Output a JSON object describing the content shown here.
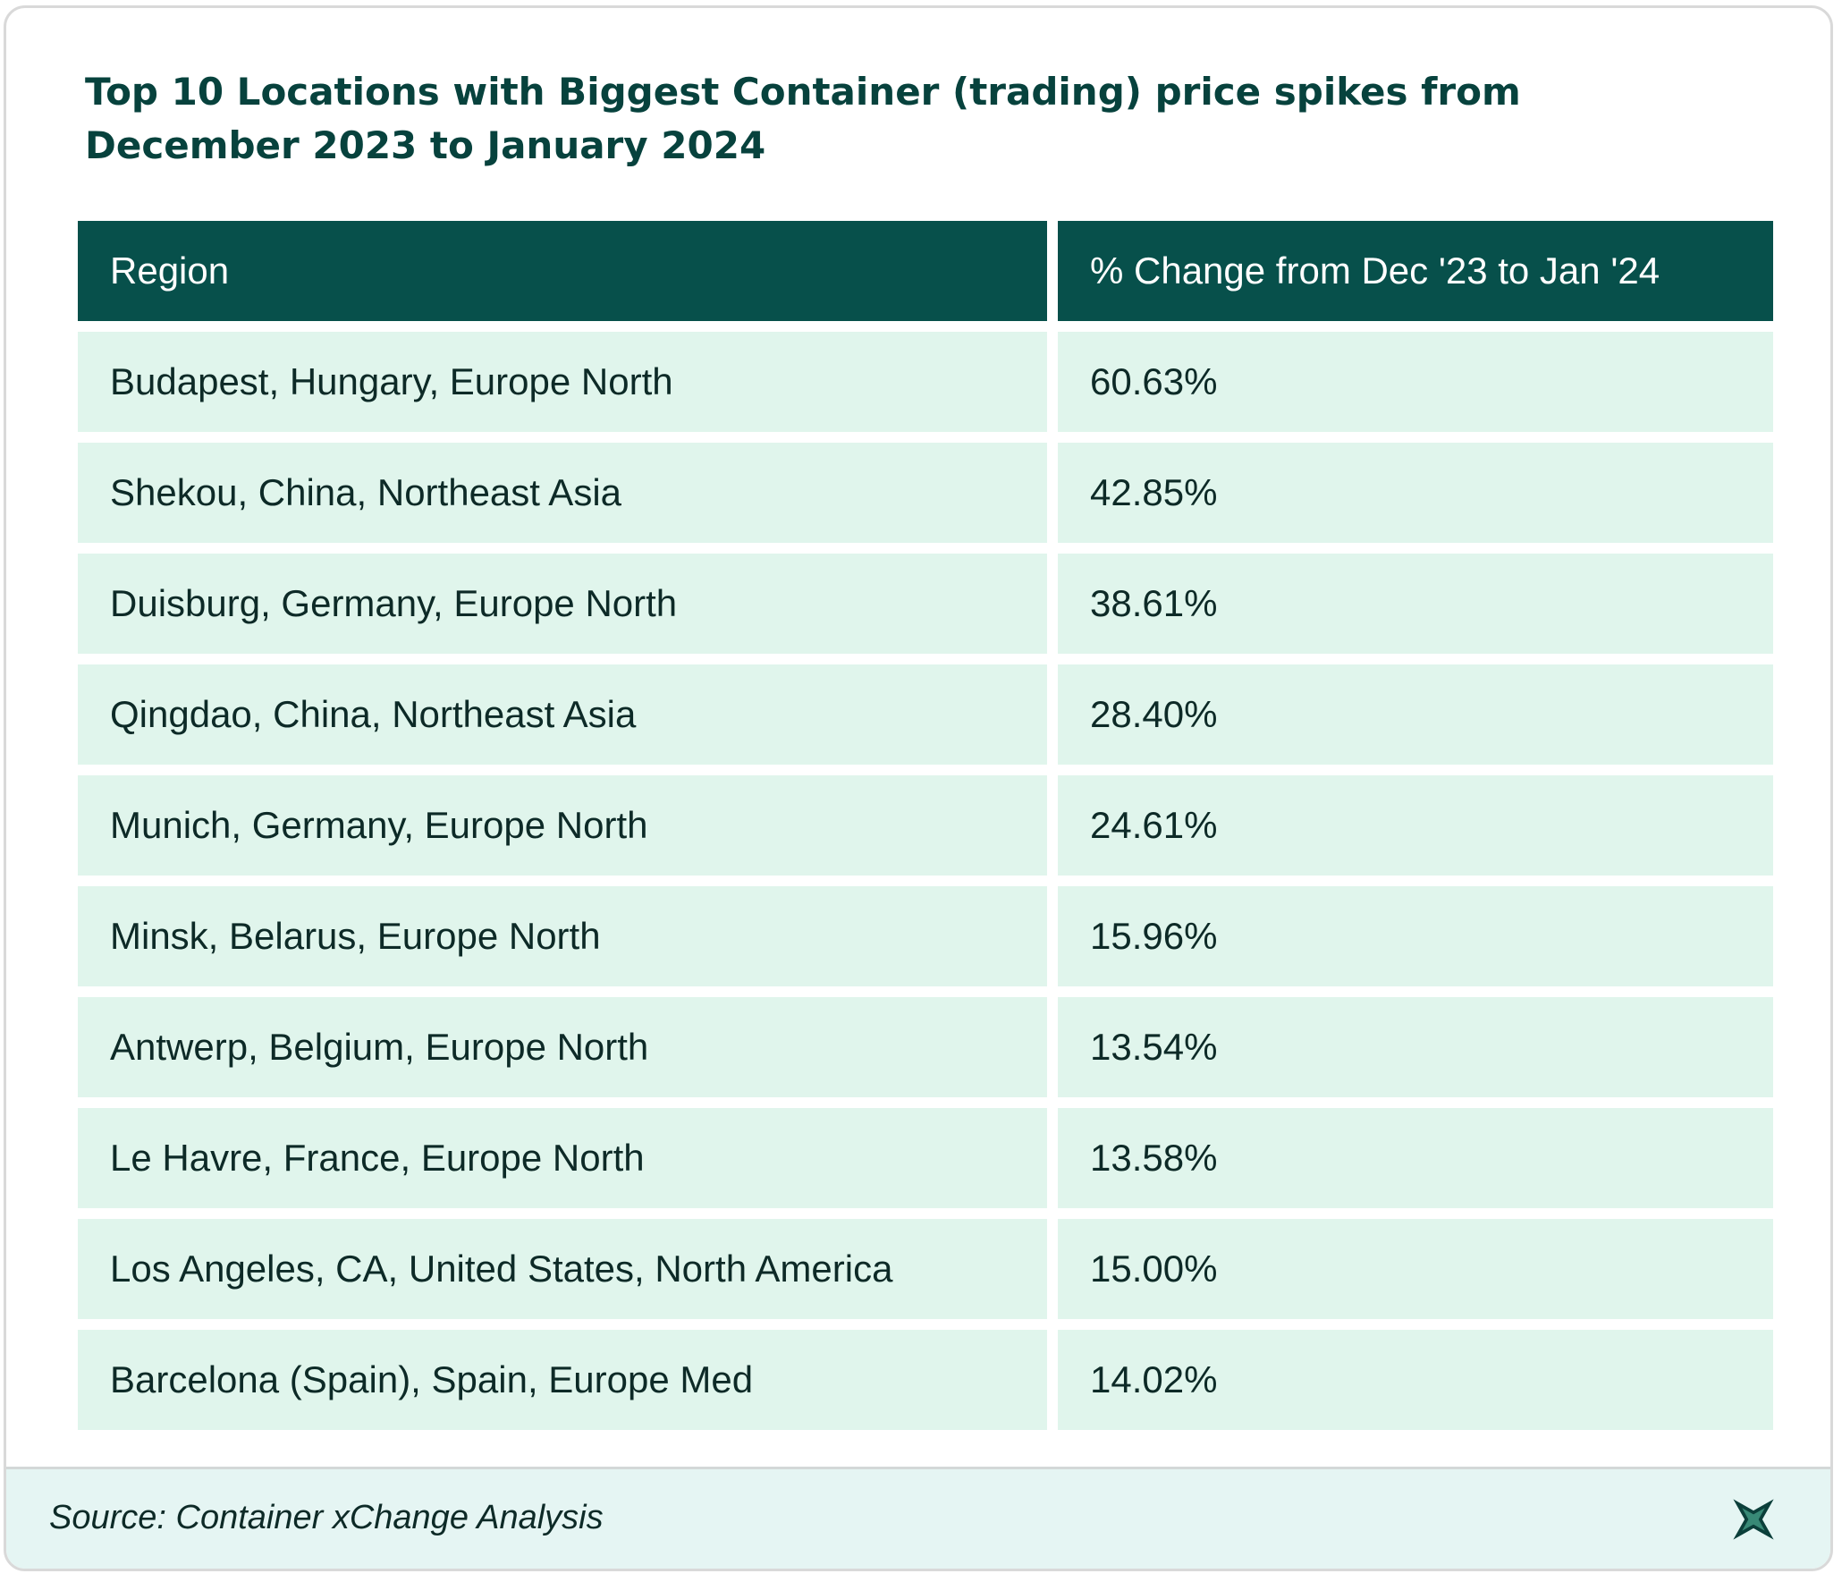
{
  "title": "Top 10 Locations with Biggest Container (trading) price spikes from December 2023 to January 2024",
  "chart_data": {
    "type": "table",
    "columns": [
      "Region",
      "% Change from Dec '23 to Jan '24"
    ],
    "rows": [
      {
        "region": "Budapest, Hungary, Europe North",
        "change": "60.63%"
      },
      {
        "region": "Shekou, China, Northeast Asia",
        "change": "42.85%"
      },
      {
        "region": "Duisburg, Germany, Europe North",
        "change": "38.61%"
      },
      {
        "region": "Qingdao, China, Northeast Asia",
        "change": "28.40%"
      },
      {
        "region": "Munich, Germany, Europe North",
        "change": "24.61%"
      },
      {
        "region": "Minsk, Belarus, Europe North",
        "change": "15.96%"
      },
      {
        "region": "Antwerp, Belgium, Europe North",
        "change": "13.54%"
      },
      {
        "region": "Le Havre, France, Europe North",
        "change": "13.58%"
      },
      {
        "region": "Los Angeles, CA, United States, North America",
        "change": "15.00%"
      },
      {
        "region": "Barcelona (Spain), Spain, Europe Med",
        "change": "14.02%"
      }
    ]
  },
  "footer": {
    "source": "Source: Container xChange Analysis",
    "logo_icon": "xchange-star-logo-icon"
  },
  "colors": {
    "header_bg": "#07504b",
    "row_bg": "#e0f5ec",
    "title_text": "#07423d",
    "footer_bg": "#e5f5f3"
  }
}
